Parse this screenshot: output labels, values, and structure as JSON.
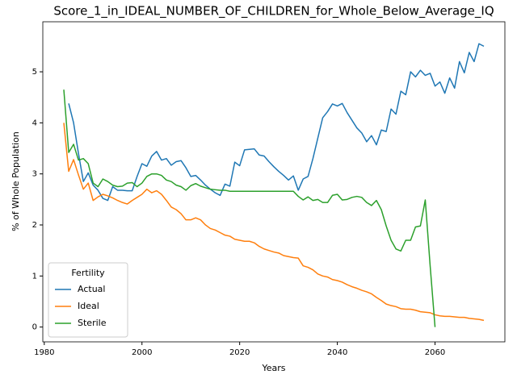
{
  "chart_data": {
    "type": "line",
    "title": "Score_1_in_IDEAL_NUMBER_OF_CHILDREN_for_Whole_Below_Average_IQ",
    "x_label": "Years",
    "y_label": "% of Whole Population",
    "legend_title": "Fertility",
    "legend": "lower left",
    "x": [
      1984,
      1985,
      1986,
      1987,
      1988,
      1989,
      1990,
      1991,
      1992,
      1993,
      1994,
      1995,
      1996,
      1997,
      1998,
      1999,
      2000,
      2001,
      2002,
      2003,
      2004,
      2005,
      2006,
      2007,
      2008,
      2009,
      2010,
      2011,
      2012,
      2013,
      2014,
      2015,
      2016,
      2017,
      2018,
      2019,
      2020,
      2021,
      2022,
      2023,
      2024,
      2025,
      2026,
      2027,
      2028,
      2029,
      2030,
      2031,
      2032,
      2033,
      2034,
      2035,
      2036,
      2037,
      2038,
      2039,
      2040,
      2041,
      2042,
      2043,
      2044,
      2045,
      2046,
      2047,
      2048,
      2049,
      2050,
      2051,
      2052,
      2053,
      2054,
      2055,
      2056,
      2057,
      2058,
      2059,
      2060,
      2061,
      2062,
      2063,
      2064,
      2065,
      2066,
      2067,
      2068,
      2069,
      2070
    ],
    "series": [
      {
        "name": "Actual",
        "color": "#1f77b4",
        "values": [
          null,
          4.38,
          4.0,
          3.4,
          2.85,
          3.02,
          2.78,
          2.68,
          2.52,
          2.48,
          2.75,
          2.68,
          2.68,
          2.67,
          2.67,
          2.95,
          3.2,
          3.15,
          3.35,
          3.44,
          3.27,
          3.3,
          3.17,
          3.24,
          3.26,
          3.12,
          2.95,
          2.97,
          2.88,
          2.78,
          2.7,
          2.63,
          2.58,
          2.8,
          2.76,
          3.23,
          3.16,
          3.47,
          3.48,
          3.49,
          3.37,
          3.35,
          3.24,
          3.14,
          3.05,
          2.97,
          2.88,
          2.96,
          2.68,
          2.9,
          2.95,
          3.3,
          3.7,
          4.1,
          4.22,
          4.37,
          4.33,
          4.38,
          4.2,
          4.05,
          3.9,
          3.8,
          3.63,
          3.75,
          3.57,
          3.86,
          3.83,
          4.27,
          4.17,
          4.62,
          4.55,
          5.0,
          4.9,
          5.03,
          4.93,
          4.97,
          4.72,
          4.8,
          4.58,
          4.88,
          4.68,
          5.2,
          4.98,
          5.38,
          5.2,
          5.55,
          5.5
        ]
      },
      {
        "name": "Ideal",
        "color": "#ff7f0e",
        "values": [
          4.0,
          3.05,
          3.28,
          2.98,
          2.7,
          2.82,
          2.48,
          2.55,
          2.6,
          2.57,
          2.53,
          2.48,
          2.44,
          2.41,
          2.48,
          2.54,
          2.6,
          2.7,
          2.63,
          2.67,
          2.6,
          2.48,
          2.35,
          2.3,
          2.22,
          2.1,
          2.1,
          2.14,
          2.1,
          2.0,
          1.93,
          1.9,
          1.85,
          1.8,
          1.78,
          1.72,
          1.7,
          1.68,
          1.68,
          1.65,
          1.58,
          1.53,
          1.5,
          1.47,
          1.45,
          1.4,
          1.38,
          1.36,
          1.35,
          1.2,
          1.17,
          1.12,
          1.04,
          1.0,
          0.98,
          0.93,
          0.91,
          0.88,
          0.83,
          0.79,
          0.76,
          0.72,
          0.69,
          0.65,
          0.58,
          0.52,
          0.45,
          0.42,
          0.4,
          0.36,
          0.35,
          0.35,
          0.33,
          0.3,
          0.29,
          0.28,
          0.24,
          0.22,
          0.21,
          0.21,
          0.2,
          0.19,
          0.19,
          0.17,
          0.16,
          0.15,
          0.13
        ]
      },
      {
        "name": "Sterile",
        "color": "#2ca02c",
        "values": [
          4.65,
          3.42,
          3.58,
          3.27,
          3.3,
          3.2,
          2.82,
          2.75,
          2.9,
          2.85,
          2.78,
          2.75,
          2.76,
          2.82,
          2.83,
          2.75,
          2.82,
          2.95,
          3.0,
          3.0,
          2.97,
          2.88,
          2.85,
          2.78,
          2.75,
          2.68,
          2.77,
          2.81,
          2.76,
          2.73,
          2.7,
          2.69,
          2.68,
          2.68,
          2.66,
          2.66,
          2.66,
          2.66,
          2.66,
          2.66,
          2.66,
          2.66,
          2.66,
          2.66,
          2.66,
          2.66,
          2.66,
          2.66,
          2.56,
          2.49,
          2.55,
          2.48,
          2.5,
          2.44,
          2.44,
          2.58,
          2.6,
          2.49,
          2.5,
          2.54,
          2.56,
          2.54,
          2.44,
          2.38,
          2.48,
          2.3,
          1.98,
          1.7,
          1.53,
          1.49,
          1.7,
          1.7,
          1.96,
          1.98,
          2.49,
          1.2,
          0.0,
          null,
          null,
          null,
          null,
          null,
          null,
          null,
          null,
          null,
          null
        ]
      }
    ],
    "xlim": [
      1979.7,
      2074.3
    ],
    "xticks": [
      1980,
      2000,
      2020,
      2040,
      2060
    ],
    "ylim": [
      -0.29,
      5.98
    ],
    "yticks": [
      0,
      1,
      2,
      3,
      4,
      5
    ]
  }
}
